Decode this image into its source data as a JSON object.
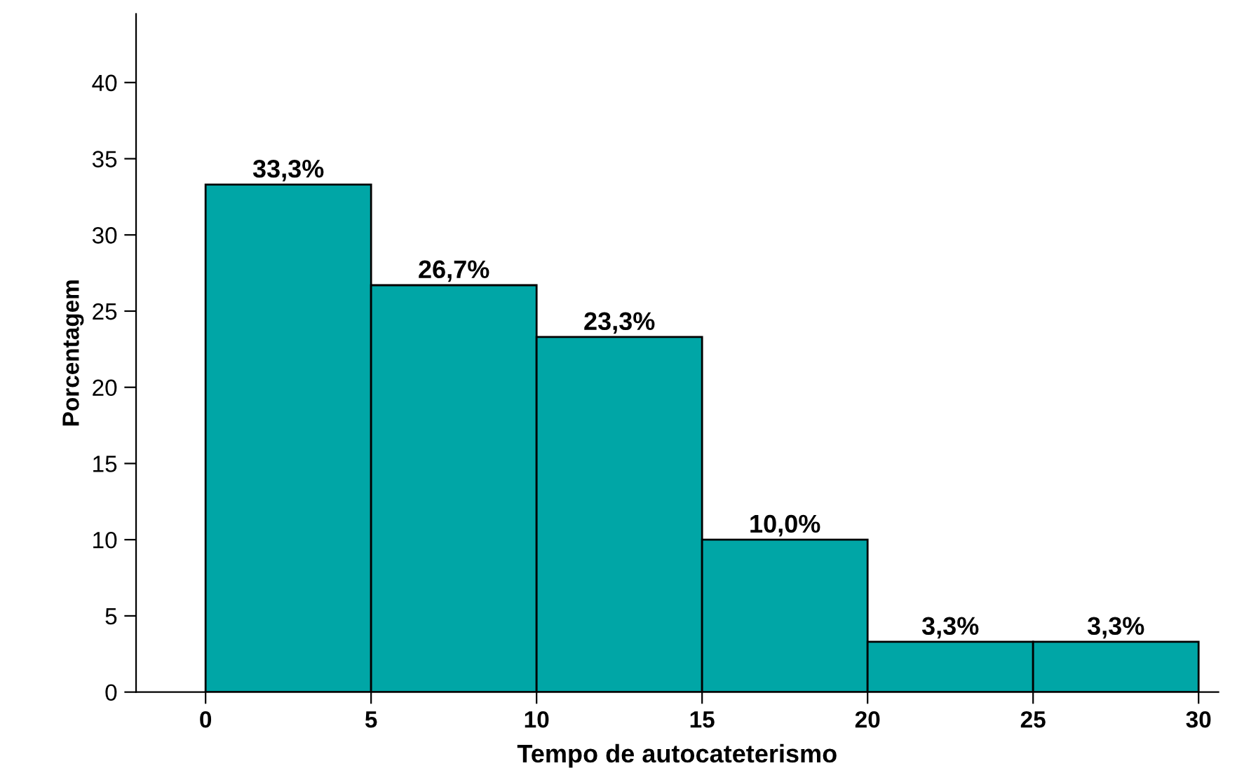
{
  "chart_data": {
    "type": "histogram",
    "xlabel": "Tempo de autocateterismo",
    "ylabel": "Porcentagem",
    "bins": [
      0,
      5,
      10,
      15,
      20,
      25,
      30
    ],
    "values": [
      33.3,
      26.7,
      23.3,
      10.0,
      3.3,
      3.3
    ],
    "value_labels": [
      "33,3%",
      "26,7%",
      "23,3%",
      "10,0%",
      "3,3%",
      "3,3%"
    ],
    "color": "#00a6a6",
    "xlim": [
      -2.1,
      30.6
    ],
    "xticks": [
      0,
      5,
      10,
      15,
      20,
      25,
      30
    ],
    "ylim": [
      0,
      44.5
    ],
    "yticks": [
      0,
      5,
      10,
      15,
      20,
      25,
      30,
      35,
      40
    ],
    "grid": false
  }
}
